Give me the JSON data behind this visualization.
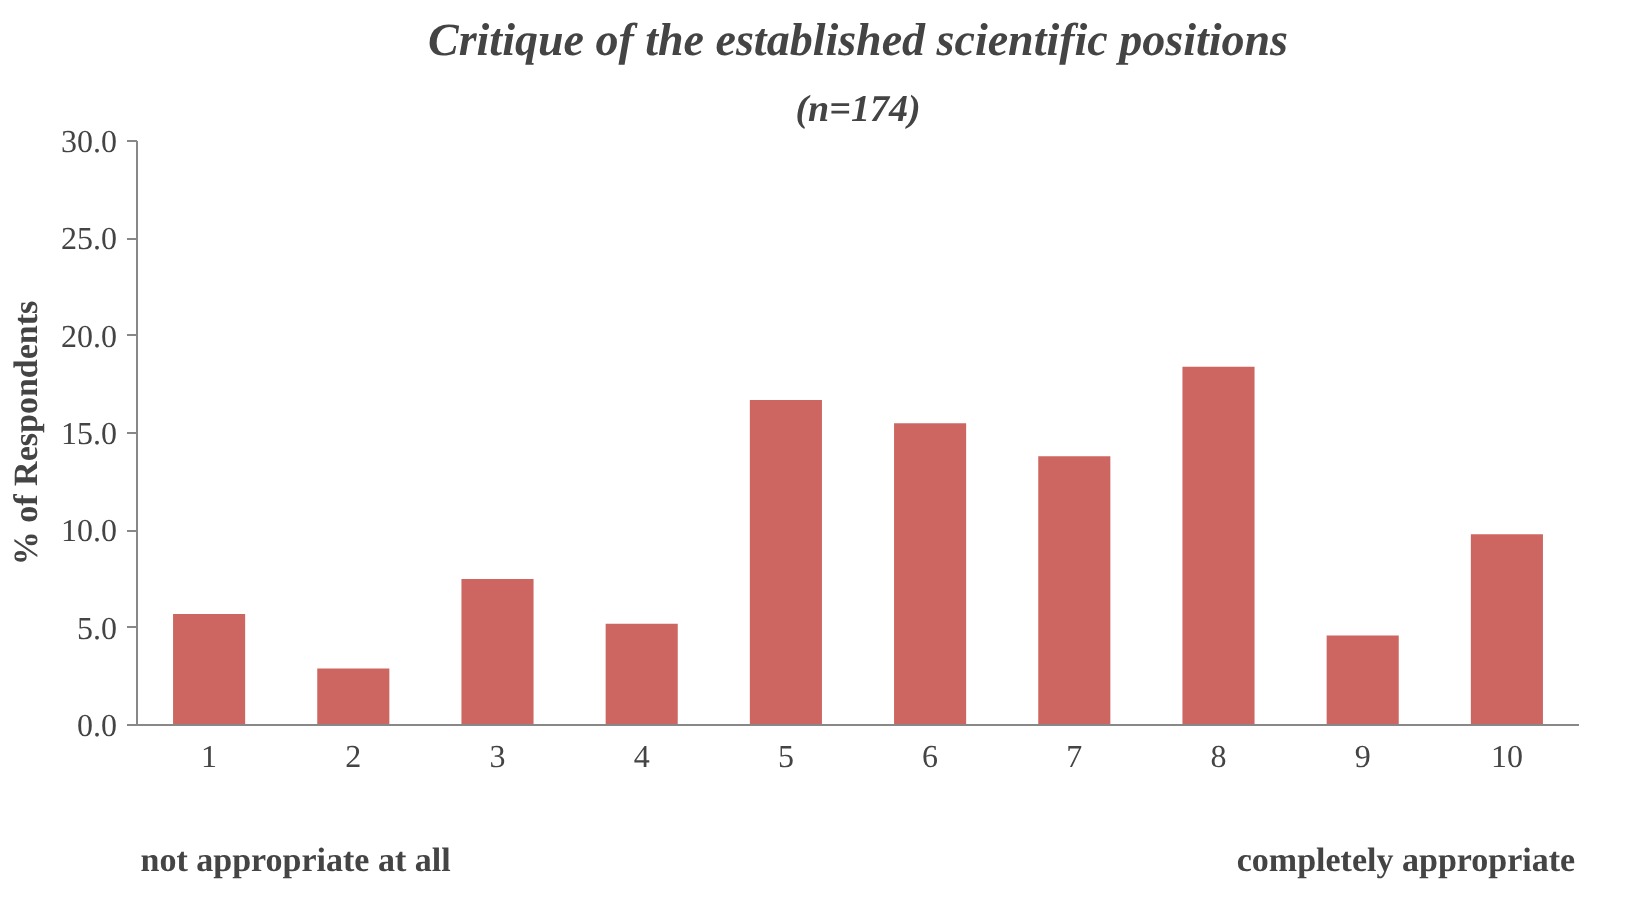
{
  "chart_data": {
    "type": "bar",
    "title": "Critique of the established scientific positions",
    "subtitle": "(n=174)",
    "ylabel": "% of Respondents",
    "categories": [
      "1",
      "2",
      "3",
      "4",
      "5",
      "6",
      "7",
      "8",
      "9",
      "10"
    ],
    "values": [
      5.7,
      2.9,
      7.5,
      5.2,
      16.7,
      15.5,
      13.8,
      18.4,
      4.6,
      9.8
    ],
    "color": "#cd6660",
    "ylim": [
      0,
      30
    ],
    "yticks": [
      {
        "value": 0,
        "label": "0.0"
      },
      {
        "value": 5,
        "label": "5.0"
      },
      {
        "value": 10,
        "label": "10.0"
      },
      {
        "value": 15,
        "label": "15.0"
      },
      {
        "value": 20,
        "label": "20.0"
      },
      {
        "value": 25,
        "label": "25.0"
      },
      {
        "value": 30,
        "label": "30.0"
      }
    ],
    "annotations": [
      "not appropriate at all",
      "completely appropriate"
    ],
    "grid": false
  }
}
